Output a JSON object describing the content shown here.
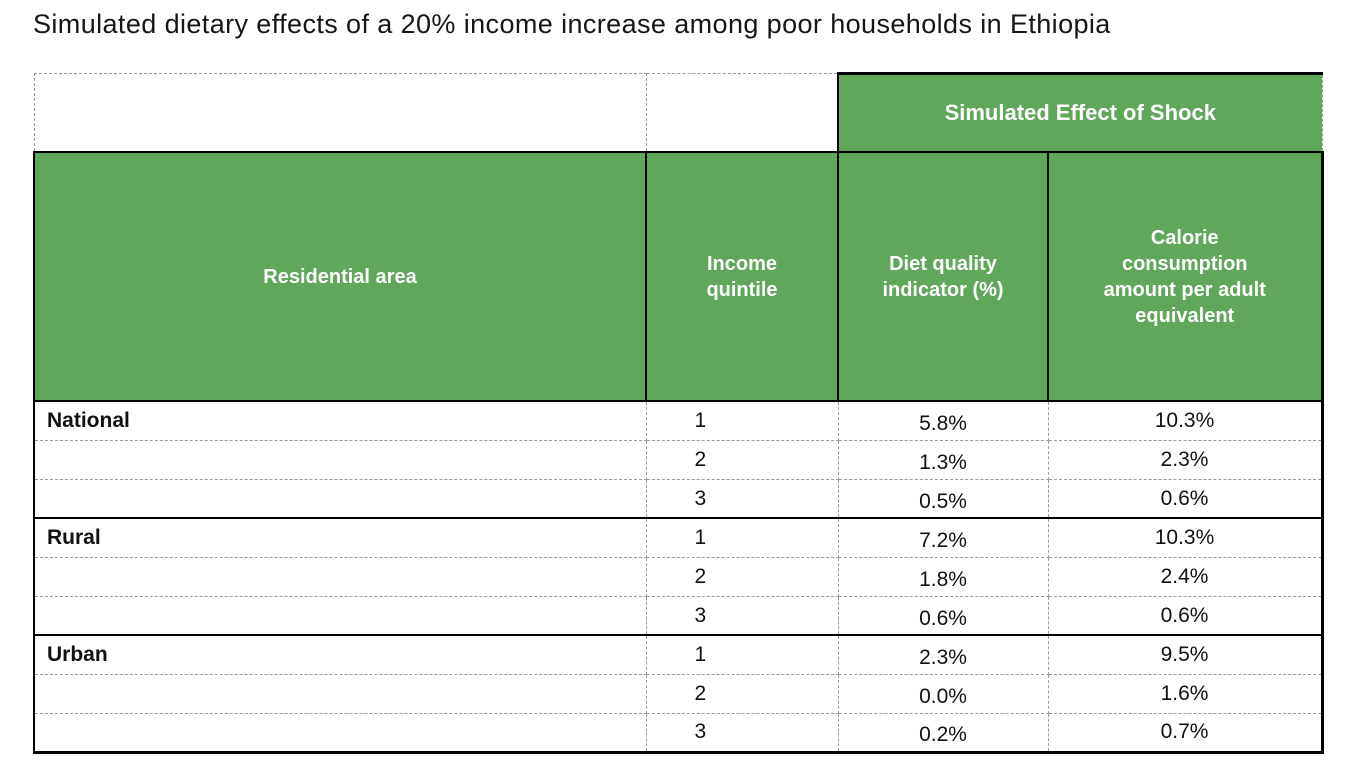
{
  "title": "Simulated dietary effects of a 20% income increase among poor households in Ethiopia",
  "colors": {
    "header_green": "#5FA85A",
    "border_black": "#000000",
    "dashed_gray": "#9A9A9A",
    "header_text": "#FFFFFF",
    "body_text": "#111111"
  },
  "table": {
    "spanner": "Simulated Effect of Shock",
    "col_headers": {
      "residential_area": "Residential area",
      "income_quintile": "Income quintile",
      "diet_quality": "Diet quality indicator (%)",
      "calorie": "Calorie consumption amount per adult equivalent"
    },
    "groups": [
      {
        "area": "National",
        "rows": [
          [
            "1",
            "5.8%",
            "10.3%"
          ],
          [
            "2",
            "1.3%",
            "2.3%"
          ],
          [
            "3",
            "0.5%",
            "0.6%"
          ]
        ]
      },
      {
        "area": "Rural",
        "rows": [
          [
            "1",
            "7.2%",
            "10.3%"
          ],
          [
            "2",
            "1.8%",
            "2.4%"
          ],
          [
            "3",
            "0.6%",
            "0.6%"
          ]
        ]
      },
      {
        "area": "Urban",
        "rows": [
          [
            "1",
            "2.3%",
            "9.5%"
          ],
          [
            "2",
            "0.0%",
            "1.6%"
          ],
          [
            "3",
            "0.2%",
            "0.7%"
          ]
        ]
      }
    ]
  },
  "chart_data": {
    "type": "table",
    "title": "Simulated dietary effects of a 20% income increase among poor households in Ethiopia",
    "column_group_header": "Simulated Effect of Shock",
    "column_group_span": [
      "Diet quality indicator (%)",
      "Calorie consumption amount per adult equivalent"
    ],
    "columns": [
      "Residential area",
      "Income quintile",
      "Diet quality indicator (%)",
      "Calorie consumption amount per adult equivalent"
    ],
    "rows": [
      [
        "National",
        1,
        "5.8%",
        "10.3%"
      ],
      [
        "",
        2,
        "1.3%",
        "2.3%"
      ],
      [
        "",
        3,
        "0.5%",
        "0.6%"
      ],
      [
        "Rural",
        1,
        "7.2%",
        "10.3%"
      ],
      [
        "",
        2,
        "1.8%",
        "2.4%"
      ],
      [
        "",
        3,
        "0.6%",
        "0.6%"
      ],
      [
        "Urban",
        1,
        "2.3%",
        "9.5%"
      ],
      [
        "",
        2,
        "0.0%",
        "1.6%"
      ],
      [
        "",
        3,
        "0.2%",
        "0.7%"
      ]
    ]
  }
}
